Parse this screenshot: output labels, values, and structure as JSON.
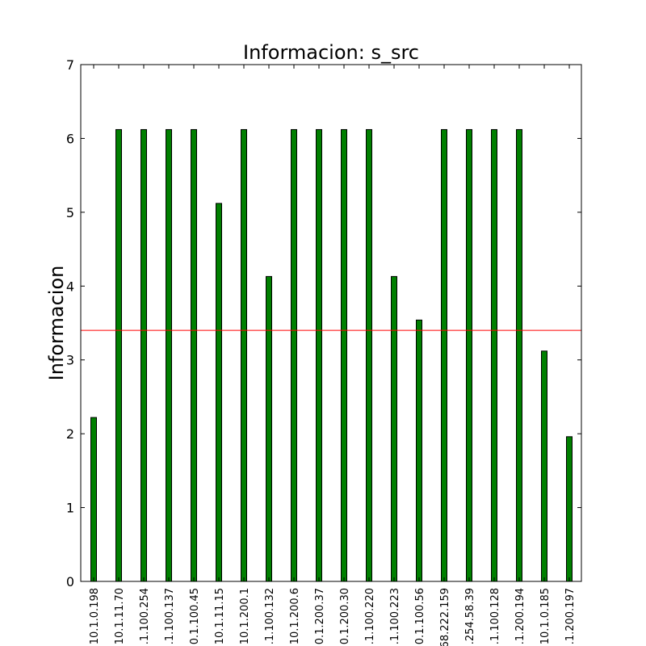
{
  "chart_data": {
    "type": "bar",
    "title": "Informacion: s_src",
    "xlabel": "",
    "ylabel": "Informacion",
    "ylim": [
      0,
      7
    ],
    "yticks": [
      "0",
      "1",
      "2",
      "3",
      "4",
      "5",
      "6",
      "7"
    ],
    "categories": [
      "10.1.0.198",
      "10.1.11.70",
      ".1.100.254",
      ".1.100.137",
      "0.1.100.45",
      "10.1.11.15",
      "10.1.200.1",
      ".1.100.132",
      "10.1.200.6",
      "0.1.200.37",
      "0.1.200.30",
      ".1.100.220",
      ".1.100.223",
      "0.1.100.56",
      "68.222.159",
      ".254.58.39",
      ".1.100.128",
      ".1.200.194",
      "10.1.0.185",
      ".1.200.197"
    ],
    "values": [
      2.22,
      6.12,
      6.12,
      6.12,
      6.12,
      5.12,
      6.12,
      4.13,
      6.12,
      6.12,
      6.12,
      6.12,
      4.13,
      3.54,
      6.12,
      6.12,
      6.12,
      6.12,
      3.12,
      1.96
    ],
    "reference_line": 3.4,
    "grid": false,
    "colors": {
      "bar": "#007f00",
      "reference_line": "#ff0000"
    }
  }
}
